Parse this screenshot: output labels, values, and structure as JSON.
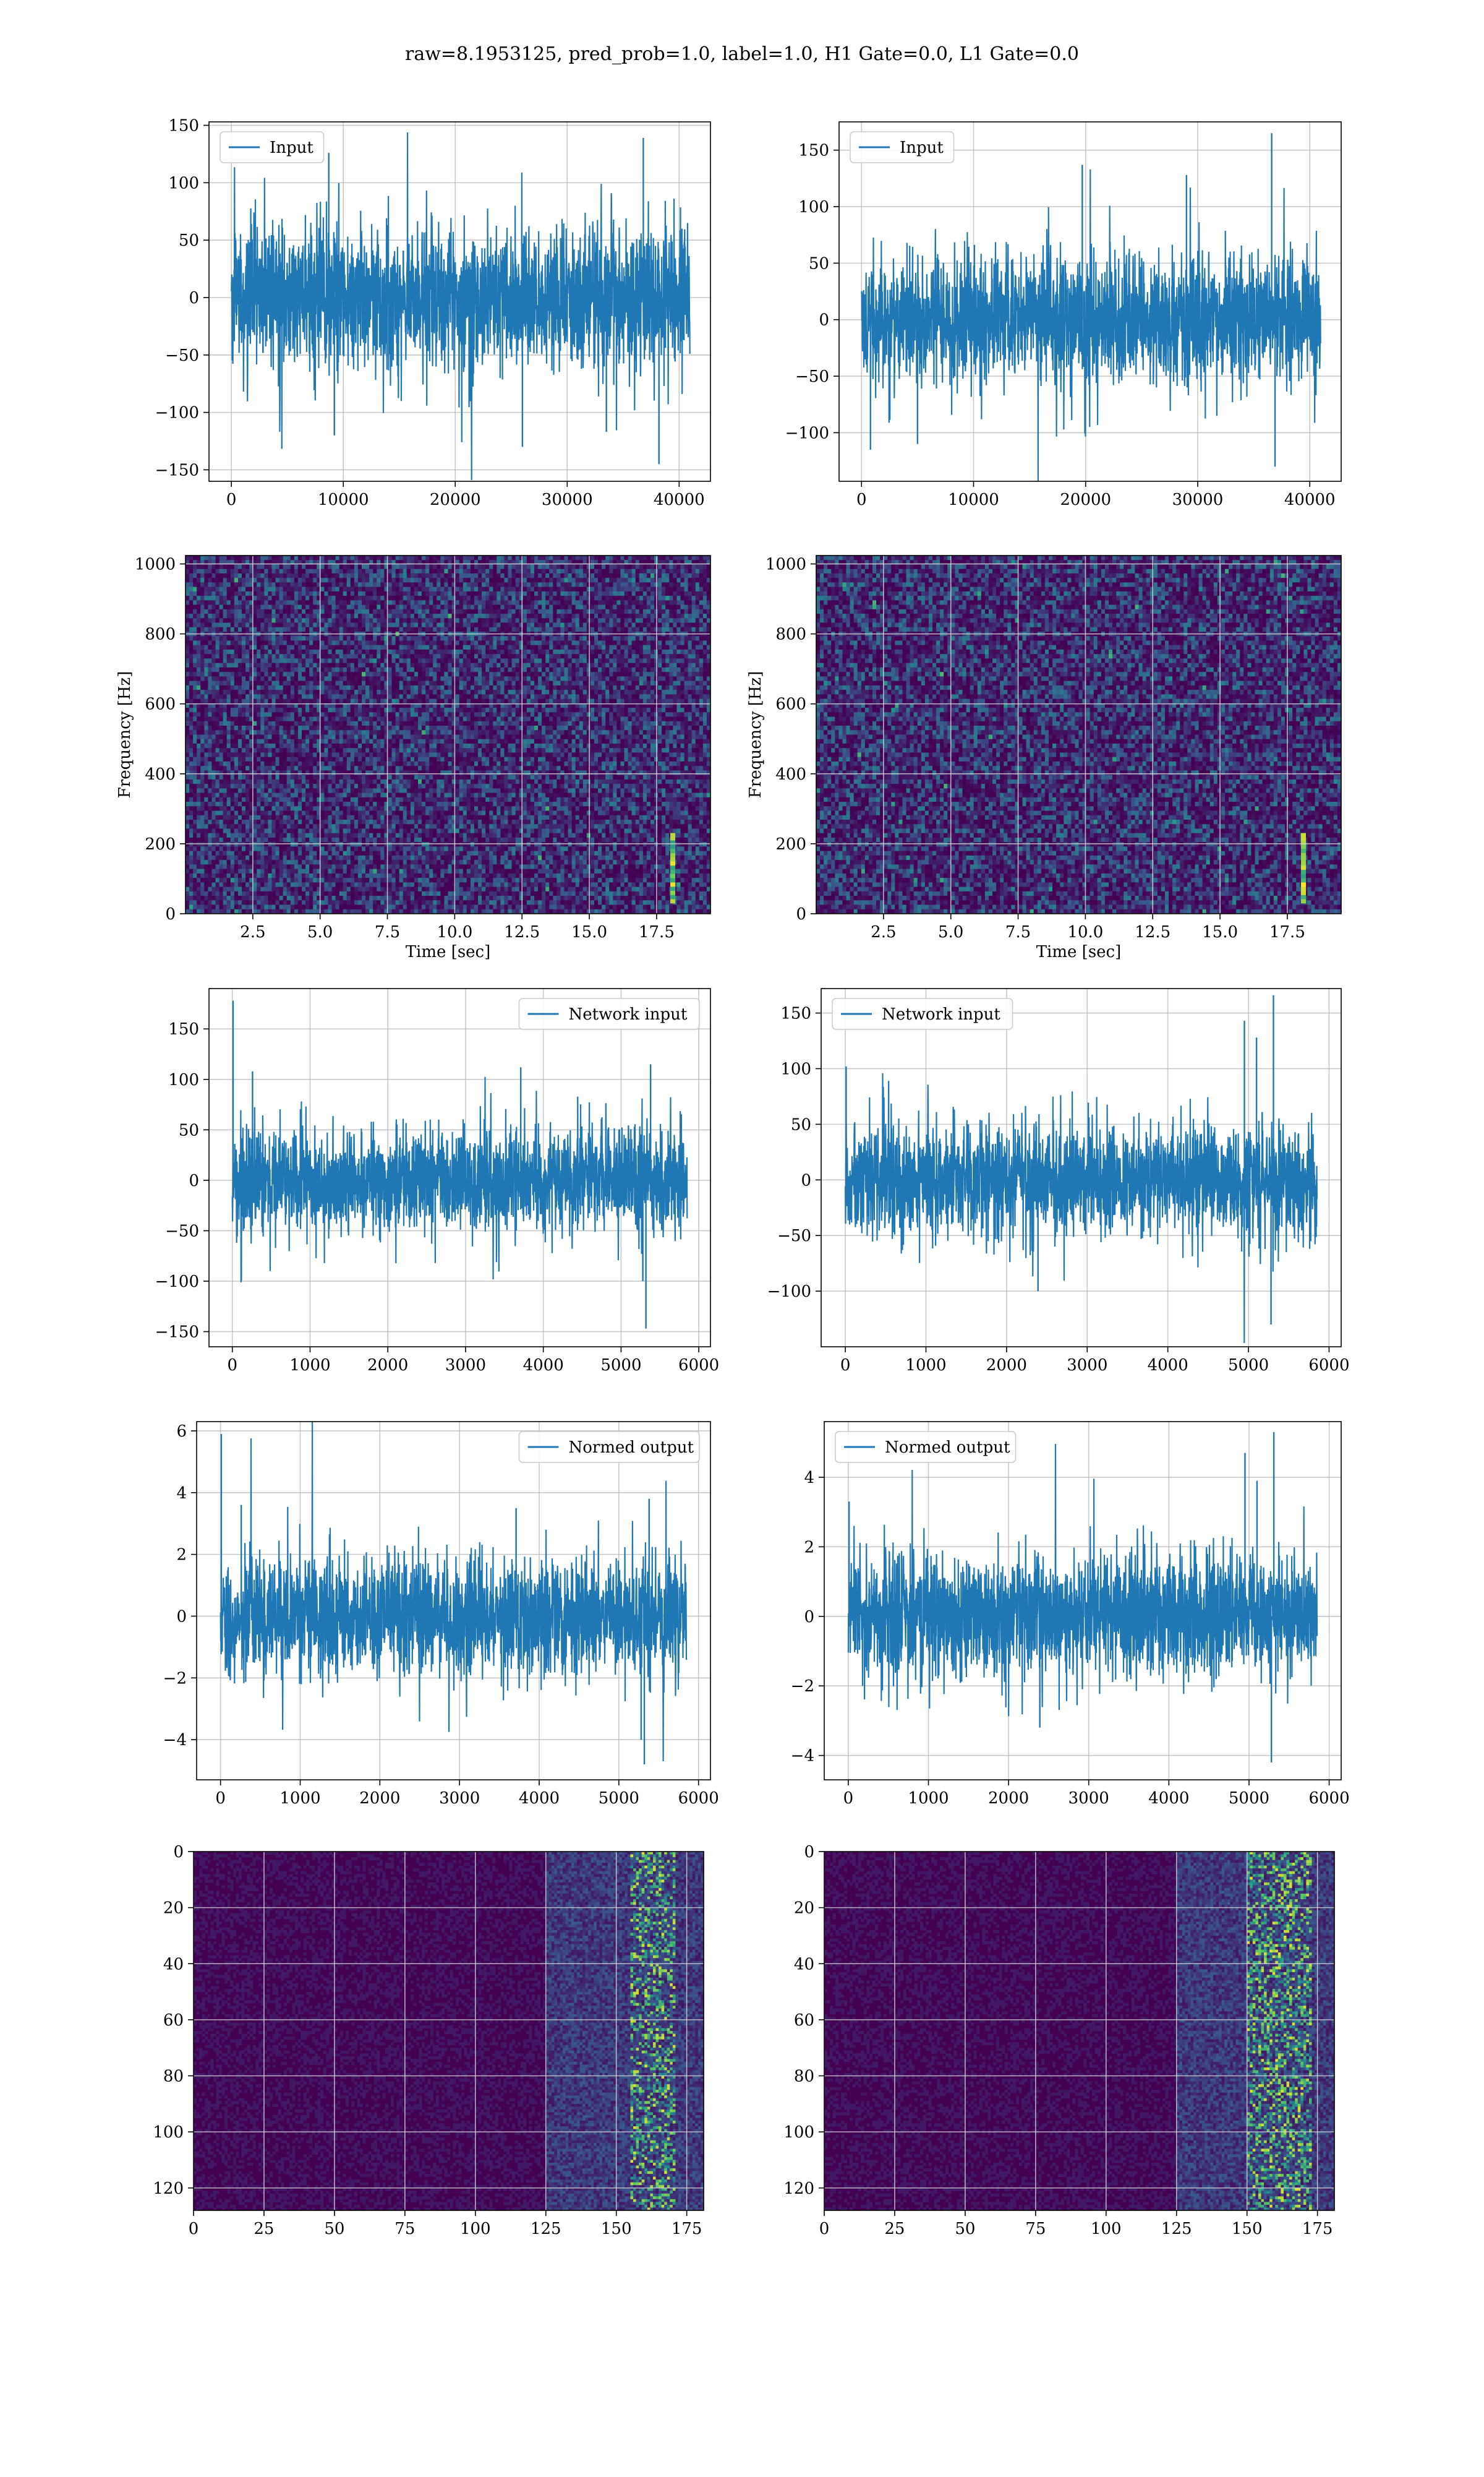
{
  "figure": {
    "suptitle": "raw=8.1953125, pred_prob=1.0, label=1.0, H1 Gate=0.0, L1 Gate=0.0",
    "colors": {
      "line": "#1f77b4",
      "grid": "#b0b0b0",
      "viridis_low": "#440154",
      "viridis_mid": "#21918c",
      "viridis_high": "#fde725"
    }
  },
  "chart_data": [
    {
      "id": "h1-input",
      "type": "line",
      "legend": [
        "Input"
      ],
      "legend_loc": "upper left",
      "grid": true,
      "xlim": [
        -2000,
        42800
      ],
      "ylim": [
        -160,
        153
      ],
      "xticks": [
        0,
        10000,
        20000,
        30000,
        40000
      ],
      "yticks": [
        -150,
        -100,
        -50,
        0,
        50,
        100,
        150
      ],
      "series": [
        {
          "name": "Input",
          "x_range": [
            0,
            40960
          ],
          "typical_band": [
            -55,
            55
          ],
          "spikes": [
            [
              8700,
              126
            ],
            [
              36800,
              139
            ],
            [
              38200,
              -145
            ],
            [
              9200,
              -120
            ],
            [
              26000,
              -130
            ],
            [
              33500,
              -117
            ]
          ]
        }
      ]
    },
    {
      "id": "l1-input",
      "type": "line",
      "legend": [
        "Input"
      ],
      "legend_loc": "upper left",
      "grid": true,
      "xlim": [
        -2000,
        42800
      ],
      "ylim": [
        -143,
        175
      ],
      "xticks": [
        0,
        10000,
        20000,
        30000,
        40000
      ],
      "yticks": [
        -100,
        -50,
        0,
        50,
        100,
        150
      ],
      "series": [
        {
          "name": "Input",
          "x_range": [
            0,
            40960
          ],
          "typical_band": [
            -50,
            50
          ],
          "spikes": [
            [
              36600,
              165
            ],
            [
              19700,
              137
            ],
            [
              29000,
              128
            ],
            [
              36900,
              -130
            ],
            [
              800,
              -115
            ],
            [
              5000,
              -110
            ]
          ]
        }
      ]
    },
    {
      "id": "h1-spectrogram",
      "type": "heatmap",
      "grid": true,
      "xlabel": "Time [sec]",
      "ylabel": "Frequency [Hz]",
      "xlim": [
        0,
        19.5
      ],
      "ylim": [
        0,
        1024
      ],
      "xticks": [
        2.5,
        5.0,
        7.5,
        10.0,
        12.5,
        15.0,
        17.5
      ],
      "yticks": [
        0,
        200,
        400,
        600,
        800,
        1000
      ],
      "colormap": "viridis",
      "features": [
        {
          "kind": "chirp",
          "t": 18.1,
          "f": [
            40,
            220
          ]
        }
      ]
    },
    {
      "id": "l1-spectrogram",
      "type": "heatmap",
      "grid": true,
      "xlabel": "Time [sec]",
      "ylabel": "Frequency [Hz]",
      "xlim": [
        0,
        19.5
      ],
      "ylim": [
        0,
        1024
      ],
      "xticks": [
        2.5,
        5.0,
        7.5,
        10.0,
        12.5,
        15.0,
        17.5
      ],
      "yticks": [
        0,
        200,
        400,
        600,
        800,
        1000
      ],
      "colormap": "viridis",
      "features": [
        {
          "kind": "chirp",
          "t": 18.1,
          "f": [
            40,
            220
          ]
        }
      ]
    },
    {
      "id": "h1-network-input",
      "type": "line",
      "legend": [
        "Network input"
      ],
      "legend_loc": "upper right",
      "grid": true,
      "xlim": [
        -300,
        6150
      ],
      "ylim": [
        -165,
        190
      ],
      "xticks": [
        0,
        1000,
        2000,
        3000,
        4000,
        5000,
        6000
      ],
      "yticks": [
        -150,
        -100,
        -50,
        0,
        50,
        100,
        150
      ],
      "series": [
        {
          "name": "Network input",
          "x_range": [
            0,
            5850
          ],
          "typical_band": [
            -45,
            45
          ],
          "spikes": [
            [
              10,
              178
            ],
            [
              260,
              108
            ],
            [
              5320,
              -147
            ],
            [
              5380,
              115
            ],
            [
              3710,
              112
            ],
            [
              5280,
              -100
            ]
          ]
        }
      ]
    },
    {
      "id": "l1-network-input",
      "type": "line",
      "legend": [
        "Network input"
      ],
      "legend_loc": "upper left",
      "grid": true,
      "xlim": [
        -300,
        6150
      ],
      "ylim": [
        -150,
        172
      ],
      "xticks": [
        0,
        1000,
        2000,
        3000,
        4000,
        5000,
        6000
      ],
      "yticks": [
        -100,
        -50,
        0,
        50,
        100,
        150
      ],
      "series": [
        {
          "name": "Network input",
          "x_range": [
            0,
            5850
          ],
          "typical_band": [
            -45,
            45
          ],
          "spikes": [
            [
              5310,
              166
            ],
            [
              4950,
              143
            ],
            [
              5280,
              -130
            ],
            [
              10,
              102
            ],
            [
              2390,
              -100
            ],
            [
              5100,
              128
            ]
          ]
        }
      ]
    },
    {
      "id": "h1-normed-output",
      "type": "line",
      "legend": [
        "Normed output"
      ],
      "legend_loc": "upper right",
      "grid": true,
      "xlim": [
        -300,
        6150
      ],
      "ylim": [
        -5.3,
        6.3
      ],
      "xticks": [
        0,
        1000,
        2000,
        3000,
        4000,
        5000,
        6000
      ],
      "yticks": [
        -4,
        -2,
        0,
        2,
        4,
        6
      ],
      "series": [
        {
          "name": "Normed output",
          "x_range": [
            0,
            5850
          ],
          "typical_band": [
            -1.7,
            1.7
          ],
          "spikes": [
            [
              10,
              5.9
            ],
            [
              5320,
              -4.8
            ],
            [
              260,
              3.6
            ],
            [
              5380,
              3.8
            ],
            [
              3710,
              3.5
            ],
            [
              5280,
              -4.0
            ]
          ]
        }
      ]
    },
    {
      "id": "l1-normed-output",
      "type": "line",
      "legend": [
        "Normed output"
      ],
      "legend_loc": "upper left",
      "grid": true,
      "xlim": [
        -300,
        6150
      ],
      "ylim": [
        -4.7,
        5.6
      ],
      "xticks": [
        0,
        1000,
        2000,
        3000,
        4000,
        5000,
        6000
      ],
      "yticks": [
        -4,
        -2,
        0,
        2,
        4
      ],
      "series": [
        {
          "name": "Normed output",
          "x_range": [
            0,
            5850
          ],
          "typical_band": [
            -1.6,
            1.6
          ],
          "spikes": [
            [
              5310,
              5.3
            ],
            [
              4950,
              4.7
            ],
            [
              5280,
              -4.2
            ],
            [
              10,
              3.3
            ],
            [
              2390,
              -3.2
            ],
            [
              5100,
              3.9
            ]
          ]
        }
      ]
    },
    {
      "id": "h1-feature-map",
      "type": "heatmap",
      "grid": true,
      "xlim": [
        0,
        181
      ],
      "ylim": [
        128,
        0
      ],
      "xticks": [
        0,
        25,
        50,
        75,
        100,
        125,
        150,
        175
      ],
      "yticks": [
        0,
        20,
        40,
        60,
        80,
        100,
        120
      ],
      "colormap": "viridis",
      "features": [
        {
          "kind": "active-band",
          "x": [
            125,
            181
          ],
          "peak_x": [
            155,
            170
          ]
        }
      ]
    },
    {
      "id": "l1-feature-map",
      "type": "heatmap",
      "grid": true,
      "xlim": [
        0,
        181
      ],
      "ylim": [
        128,
        0
      ],
      "xticks": [
        0,
        25,
        50,
        75,
        100,
        125,
        150,
        175
      ],
      "yticks": [
        0,
        20,
        40,
        60,
        80,
        100,
        120
      ],
      "colormap": "viridis",
      "features": [
        {
          "kind": "active-band",
          "x": [
            125,
            181
          ],
          "peak_x": [
            150,
            172
          ]
        }
      ]
    }
  ]
}
